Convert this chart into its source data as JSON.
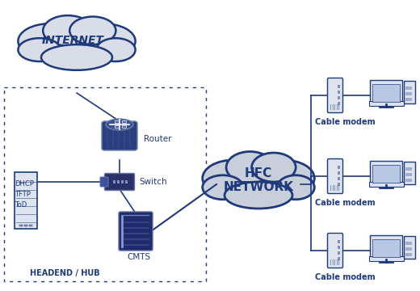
{
  "bg_color": "#ffffff",
  "internet_label": "INTERNET",
  "hfc_label": "HFC\nNETWORK",
  "headend_label": "HEADEND / HUB",
  "router_label": "Router",
  "switch_label": "Switch",
  "cmts_label": "CMTS",
  "server_labels": "DHCP\nTFTP\nToD",
  "cable_modem_label": "Cable modem",
  "line_color": "#1e3a7a",
  "text_color": "#1e3a7a",
  "cloud_fill": "#d8dde8",
  "cloud_edge": "#1e3a7a",
  "hfc_fill": "#c8ceda",
  "hfc_edge": "#1e3a7a",
  "router_body": "#2a3f80",
  "router_top": "#3a5090",
  "router_rim": "#7080b0",
  "switch_color": "#2a3068",
  "cmts_color": "#1e2c6e",
  "server_fill": "#dde4f0",
  "server_edge": "#1e3a7a",
  "modem_fill": "#dde4f0",
  "modem_edge": "#1e3a7a",
  "pc_fill": "#dde4f0",
  "pc_edge": "#1e3a7a"
}
